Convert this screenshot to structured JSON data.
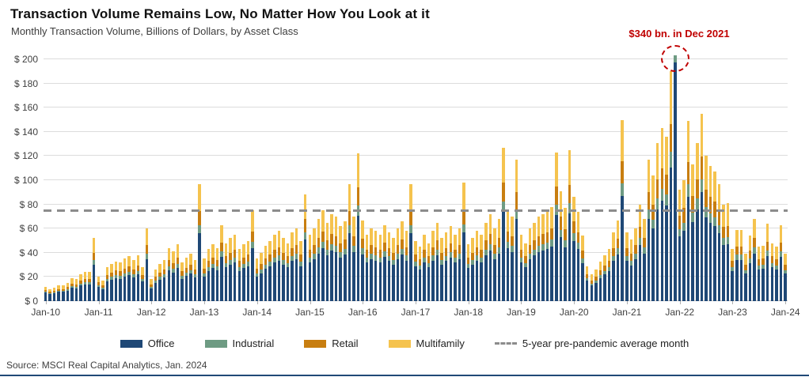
{
  "header": {
    "title": "Transaction Volume Remains Low, No Matter How You Look at it",
    "subtitle": "Monthly Transaction Volume, Billions of Dollars, by Asset Class"
  },
  "annotation": {
    "text": "$340 bn. in Dec 2021",
    "color": "#c00000",
    "target_month": "Dec-21"
  },
  "source": "Source: MSCI Real Capital Analytics, Jan. 2024",
  "colors": {
    "office": "#1F4876",
    "industrial": "#6E9B83",
    "retail": "#C87E10",
    "multifamily": "#F5C34E",
    "average_line": "#8C8C8C",
    "annotation_red": "#C00000",
    "gridline": "#DCDCDC",
    "bottom_rule": "#1F4876"
  },
  "chart_data": {
    "type": "bar",
    "stacked": true,
    "unit": "billions of USD per month",
    "start_month": "Jan-2010",
    "end_month": "Jan-2024",
    "frequency": "monthly",
    "x_tick_labels": [
      "Jan-10",
      "Jan-11",
      "Jan-12",
      "Jan-13",
      "Jan-14",
      "Jan-15",
      "Jan-16",
      "Jan-17",
      "Jan-18",
      "Jan-19",
      "Jan-20",
      "Jan-21",
      "Jan-22",
      "Jan-23",
      "Jan-24"
    ],
    "y_ticks": [
      0,
      20,
      40,
      60,
      80,
      100,
      120,
      140,
      160,
      180,
      200
    ],
    "y_tick_prefix": "$ ",
    "ylim": [
      0,
      200
    ],
    "grid": "horizontal",
    "legend_position": "bottom",
    "average_line": {
      "value": 74,
      "label": "5-year pre-pandemic average month",
      "style": "dashed"
    },
    "series": [
      {
        "name": "Office",
        "color": "#1F4876",
        "stack_share_estimate": 0.58
      },
      {
        "name": "Industrial",
        "color": "#6E9B83",
        "stack_share_estimate": 0.07
      },
      {
        "name": "Retail",
        "color": "#C87E10",
        "stack_share_estimate": 0.12
      },
      {
        "name": "Multifamily",
        "color": "#F5C34E",
        "stack_share_estimate": 0.23
      }
    ],
    "monthly_totals": [
      12,
      10,
      11,
      13,
      13,
      15,
      19,
      18,
      22,
      24,
      24,
      52,
      20,
      17,
      28,
      31,
      33,
      32,
      35,
      37,
      34,
      38,
      28,
      60,
      18,
      26,
      31,
      34,
      44,
      41,
      47,
      32,
      36,
      39,
      34,
      97,
      35,
      43,
      47,
      44,
      63,
      48,
      52,
      55,
      43,
      47,
      50,
      75,
      35,
      40,
      46,
      50,
      55,
      58,
      52,
      48,
      57,
      60,
      50,
      88,
      55,
      60,
      68,
      75,
      65,
      72,
      70,
      62,
      66,
      97,
      70,
      122,
      67,
      55,
      60,
      58,
      55,
      63,
      57,
      52,
      60,
      66,
      58,
      97,
      50,
      45,
      55,
      48,
      58,
      65,
      52,
      57,
      62,
      55,
      60,
      98,
      47,
      52,
      58,
      55,
      65,
      72,
      60,
      68,
      127,
      75,
      70,
      117,
      55,
      48,
      60,
      65,
      70,
      72,
      74,
      78,
      123,
      91,
      77,
      125,
      86,
      74,
      54,
      29,
      22,
      26,
      33,
      38,
      43,
      57,
      67,
      150,
      57,
      51,
      60,
      80,
      68,
      117,
      104,
      131,
      143,
      136,
      190,
      340,
      92,
      100,
      149,
      113,
      131,
      155,
      120,
      112,
      107,
      97,
      80,
      81,
      43,
      59,
      59,
      39,
      54,
      68,
      45,
      46,
      64,
      48,
      45,
      63,
      39
    ],
    "peak": {
      "month": "Dec-21",
      "value": 340,
      "note": "clipped by y-axis, flagged with red dashed circle"
    }
  }
}
